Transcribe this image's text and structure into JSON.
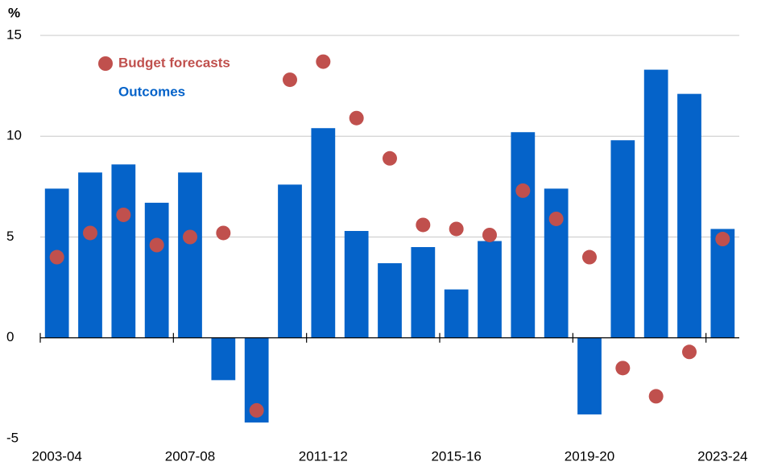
{
  "chart_data": {
    "type": "bar_scatter",
    "y_label": "%",
    "categories": [
      "2003-04",
      null,
      null,
      null,
      "2007-08",
      null,
      null,
      null,
      "2011-12",
      null,
      null,
      null,
      "2015-16",
      null,
      null,
      null,
      "2019-20",
      null,
      null,
      null,
      "2023-24"
    ],
    "series": [
      {
        "name": "Outcomes",
        "type": "bar",
        "color": "#0563c9",
        "values": [
          7.4,
          8.2,
          8.6,
          6.7,
          8.2,
          -2.1,
          -4.2,
          7.6,
          10.4,
          5.3,
          3.7,
          4.5,
          2.4,
          4.8,
          10.2,
          7.4,
          -3.8,
          9.8,
          13.3,
          12.1,
          5.4
        ]
      },
      {
        "name": "Budget forecasts",
        "type": "scatter",
        "color": "#c0504d",
        "values": [
          4.0,
          5.2,
          6.1,
          4.6,
          5.0,
          5.2,
          -3.6,
          12.8,
          13.7,
          10.9,
          8.9,
          5.6,
          5.4,
          5.1,
          7.3,
          5.9,
          4.0,
          -1.5,
          -2.9,
          -0.7,
          4.9
        ]
      }
    ],
    "ylim": [
      -5,
      15
    ],
    "yticks": [
      -5,
      0,
      5,
      10,
      15
    ],
    "grid": true
  }
}
